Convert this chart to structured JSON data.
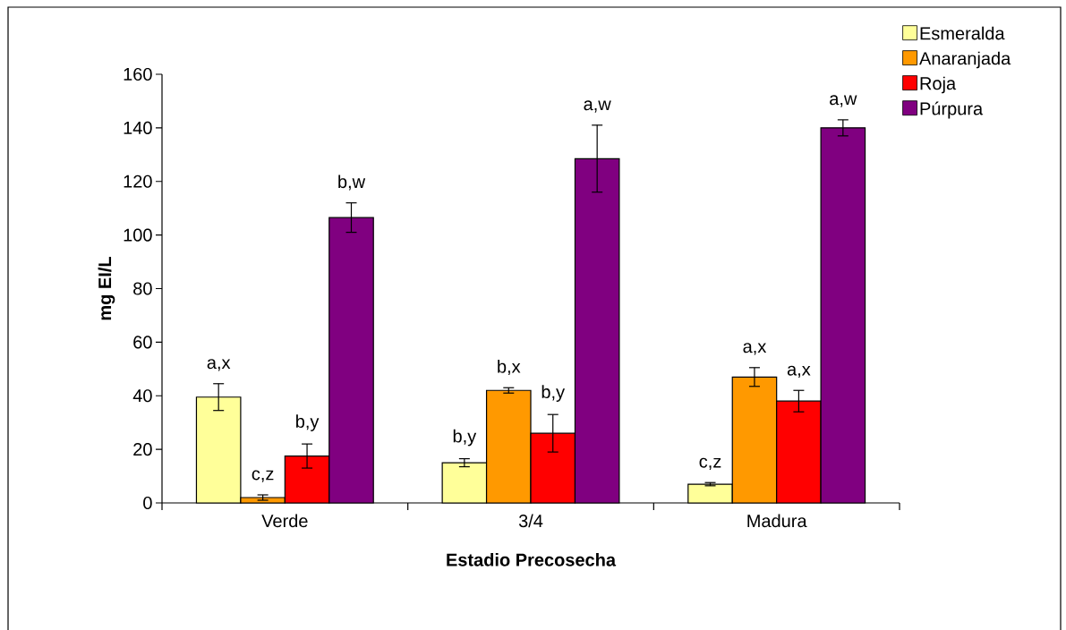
{
  "chart_data": {
    "type": "bar",
    "xlabel": "Estadio Precosecha",
    "ylabel": "mg EI/L",
    "categories": [
      "Verde",
      "3/4",
      "Madura"
    ],
    "series": [
      {
        "name": "Esmeralda",
        "color": "#ffff99",
        "values": [
          39.5,
          15,
          7
        ],
        "errors": [
          5,
          1.5,
          0.6
        ],
        "value_labels": [
          "a,x",
          "b,y",
          "c,z"
        ]
      },
      {
        "name": "Anaranjada",
        "color": "#ff9900",
        "values": [
          2,
          42,
          47
        ],
        "errors": [
          1,
          1,
          3.5
        ],
        "value_labels": [
          "c,z",
          "b,x",
          "a,x"
        ]
      },
      {
        "name": "Roja",
        "color": "#ff0000",
        "values": [
          17.5,
          26,
          38
        ],
        "errors": [
          4.5,
          7,
          4
        ],
        "value_labels": [
          "b,y",
          "b,y",
          "a,x"
        ]
      },
      {
        "name": "Púrpura",
        "color": "#800080",
        "values": [
          106.5,
          128.5,
          140
        ],
        "errors": [
          5.5,
          12.5,
          3
        ],
        "value_labels": [
          "b,w",
          "a,w",
          "a,w"
        ]
      }
    ],
    "ylim": [
      0,
      160
    ],
    "yticks": [
      0,
      20,
      40,
      60,
      80,
      100,
      120,
      140,
      160
    ],
    "legend": "top right"
  }
}
